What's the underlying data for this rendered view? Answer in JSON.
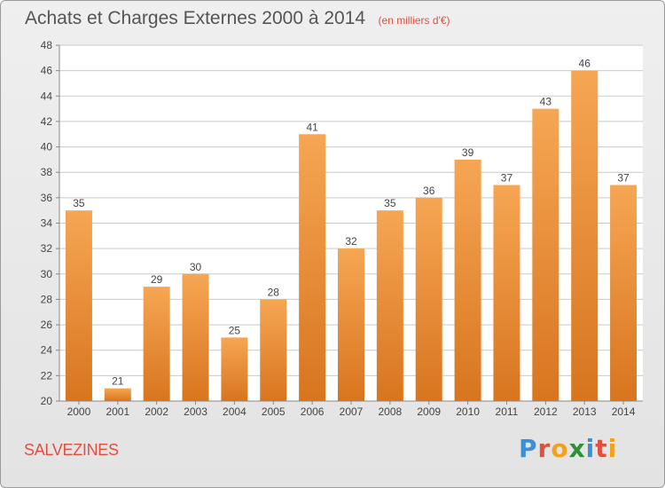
{
  "header": {
    "title": "Achats et Charges Externes 2000 à 2014",
    "unit_note": "(en milliers d'€)"
  },
  "footer": {
    "town_name": "SALVEZINES",
    "logo": {
      "text": "Proxiti",
      "letters": [
        "P",
        "r",
        "o",
        "x",
        "i",
        "t",
        "i"
      ],
      "colors": [
        "#3b8fd4",
        "#e0503f",
        "#f2a21a",
        "#2f8f3b",
        "#3b8fd4",
        "#e0503f",
        "#f2a21a"
      ]
    }
  },
  "chart_data": {
    "type": "bar",
    "title": "Achats et Charges Externes 2000 à 2014",
    "subtitle": "(en milliers d'€)",
    "xlabel": "",
    "ylabel": "",
    "categories": [
      "2000",
      "2001",
      "2002",
      "2003",
      "2004",
      "2005",
      "2006",
      "2007",
      "2008",
      "2009",
      "2010",
      "2011",
      "2012",
      "2013",
      "2014"
    ],
    "values": [
      35,
      21,
      29,
      30,
      25,
      28,
      41,
      32,
      35,
      36,
      39,
      37,
      43,
      46,
      37
    ],
    "ylim": [
      20,
      48
    ],
    "yticks": [
      20,
      22,
      24,
      26,
      28,
      30,
      32,
      34,
      36,
      38,
      40,
      42,
      44,
      46,
      48
    ],
    "grid": true,
    "data_labels": true,
    "colors": {
      "bar_light": "#f6a653",
      "bar_dark": "#d8751f",
      "grid": "#c9c9c9",
      "plot_bg": "#ffffff",
      "axis": "#888888",
      "label_text": "#444444"
    }
  }
}
